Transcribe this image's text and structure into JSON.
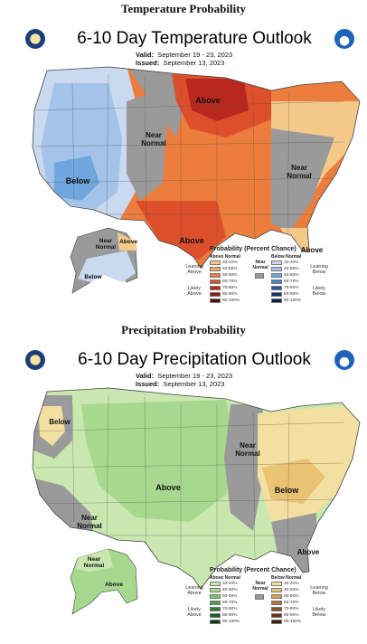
{
  "temperature": {
    "section_heading": "Temperature Probability",
    "title": "6-10 Day Temperature Outlook",
    "valid_label": "Valid:",
    "valid_value": "September 19 - 23, 2023",
    "issued_label": "Issued:",
    "issued_value": "September 13, 2023",
    "region_labels": {
      "above_north": "Above",
      "near_normal_plains": "Near\nNormal",
      "below_west": "Below",
      "near_normal_east": "Near\nNormal",
      "above_texas": "Above",
      "above_florida": "Above",
      "near_normal_alaska": "Near\nNormal",
      "above_alaska": "Above",
      "below_alaska": "Below"
    },
    "legend": {
      "title": "Probability (Percent Chance)",
      "above_head": "Above Normal",
      "below_head": "Below Normal",
      "near_head": "Near\nNormal",
      "levels": [
        "33-40%",
        "40-50%",
        "50-60%",
        "60-70%",
        "70-80%",
        "80-90%",
        "90-100%"
      ],
      "above_colors": [
        "#f5c98a",
        "#f2a95a",
        "#ec7d3c",
        "#dd4f2a",
        "#b9281f",
        "#8c1a17",
        "#5e0d0d"
      ],
      "below_colors": [
        "#c9d9ef",
        "#a3c3e8",
        "#6fa6de",
        "#3f82c8",
        "#2456a6",
        "#16307a",
        "#0c1a4f"
      ],
      "near_color": "#9a9a9a",
      "leaning_above": "Leaning\nAbove",
      "likely_above": "Likely\nAbove",
      "leaning_below": "Leaning\nBelow",
      "likely_below": "Likely\nBelow"
    }
  },
  "precipitation": {
    "section_heading": "Precipitation Probability",
    "title": "6-10 Day Precipitation Outlook",
    "valid_label": "Valid:",
    "valid_value": "September 19 - 23, 2023",
    "issued_label": "Issued:",
    "issued_value": "September 13, 2023",
    "region_labels": {
      "below_northwest": "Below",
      "above_central": "Above",
      "near_normal_ohio": "Near\nNormal",
      "below_east": "Below",
      "near_normal_southwest": "Near\nNormal",
      "above_southeast": "Above",
      "near_normal_alaska": "Near\nNormal",
      "above_alaska": "Above"
    },
    "legend": {
      "title": "Probability (Percent Chance)",
      "above_head": "Above Normal",
      "below_head": "Below Normal",
      "near_head": "Near\nNormal",
      "levels": [
        "33-40%",
        "40-50%",
        "50-60%",
        "60-70%",
        "70-80%",
        "80-90%",
        "90-100%"
      ],
      "above_colors": [
        "#c8e8b0",
        "#a6d98e",
        "#7cc46a",
        "#4fa54a",
        "#2f7d35",
        "#1e5a25",
        "#0f3815"
      ],
      "below_colors": [
        "#f3dfa0",
        "#e9c274",
        "#d99c47",
        "#b9722c",
        "#8e4e1e",
        "#663514",
        "#40200a"
      ],
      "near_color": "#9a9a9a",
      "leaning_above": "Leaning\nAbove",
      "likely_above": "Likely\nAbove",
      "leaning_below": "Leaning\nBelow",
      "likely_below": "Likely\nBelow"
    }
  }
}
